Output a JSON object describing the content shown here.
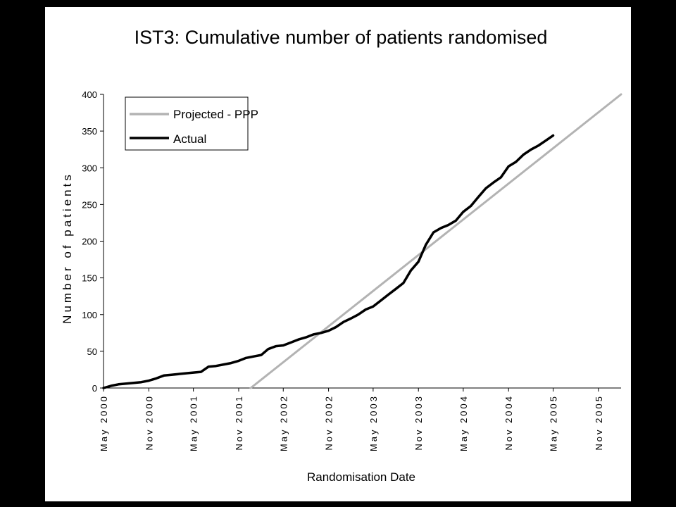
{
  "chart_data": {
    "type": "line",
    "title": "IST3: Cumulative number of patients randomised",
    "xlabel": "Randomisation Date",
    "ylabel": "Number of patients",
    "ylim": [
      0,
      400
    ],
    "yticks": [
      0,
      50,
      100,
      150,
      200,
      250,
      300,
      350,
      400
    ],
    "xlim": [
      "2000-05",
      "2006-02"
    ],
    "xticks": [
      "2000-05",
      "2000-11",
      "2001-05",
      "2001-11",
      "2002-05",
      "2002-11",
      "2003-05",
      "2003-11",
      "2004-05",
      "2004-11",
      "2005-05",
      "2005-11"
    ],
    "xtick_labels": [
      "May 2000",
      "Nov 2000",
      "May 2001",
      "Nov 2001",
      "May 2002",
      "Nov 2002",
      "May 2003",
      "Nov 2003",
      "May 2004",
      "Nov 2004",
      "May 2005",
      "Nov 2005"
    ],
    "grid": false,
    "legend_position": "top-left",
    "series": [
      {
        "name": "Projected - PPP",
        "color": "#b3b3b3",
        "x": [
          "2001-12-20",
          "2006-02-07"
        ],
        "y": [
          0,
          400
        ]
      },
      {
        "name": "Actual",
        "color": "#000000",
        "x": [
          "2000-05-01",
          "2000-06-01",
          "2000-07-01",
          "2000-08-01",
          "2000-09-01",
          "2000-10-01",
          "2000-11-01",
          "2000-12-01",
          "2001-01-01",
          "2001-02-01",
          "2001-03-01",
          "2001-04-01",
          "2001-05-01",
          "2001-06-01",
          "2001-07-01",
          "2001-08-01",
          "2001-09-01",
          "2001-10-01",
          "2001-11-01",
          "2001-12-01",
          "2002-01-01",
          "2002-02-01",
          "2002-03-01",
          "2002-04-01",
          "2002-05-01",
          "2002-06-01",
          "2002-07-01",
          "2002-08-01",
          "2002-09-01",
          "2002-10-01",
          "2002-11-01",
          "2002-12-01",
          "2003-01-01",
          "2003-02-01",
          "2003-03-01",
          "2003-04-01",
          "2003-05-01",
          "2003-06-01",
          "2003-07-01",
          "2003-08-01",
          "2003-09-01",
          "2003-10-01",
          "2003-11-01",
          "2003-12-01",
          "2004-01-01",
          "2004-02-01",
          "2004-03-01",
          "2004-04-01",
          "2004-05-01",
          "2004-06-01",
          "2004-07-01",
          "2004-08-01",
          "2004-09-01",
          "2004-10-01",
          "2004-11-01",
          "2004-12-01",
          "2005-01-01",
          "2005-02-01",
          "2005-03-01",
          "2005-04-01",
          "2005-05-01"
        ],
        "y": [
          0,
          3,
          5,
          6,
          7,
          8,
          10,
          13,
          17,
          18,
          19,
          20,
          21,
          22,
          29,
          30,
          32,
          34,
          37,
          41,
          43,
          45,
          53,
          57,
          58,
          62,
          66,
          69,
          73,
          75,
          78,
          83,
          90,
          95,
          100,
          107,
          111,
          119,
          127,
          135,
          143,
          160,
          172,
          195,
          212,
          218,
          222,
          228,
          240,
          248,
          260,
          272,
          280,
          287,
          302,
          308,
          318,
          325,
          330,
          337,
          344
        ]
      }
    ]
  }
}
